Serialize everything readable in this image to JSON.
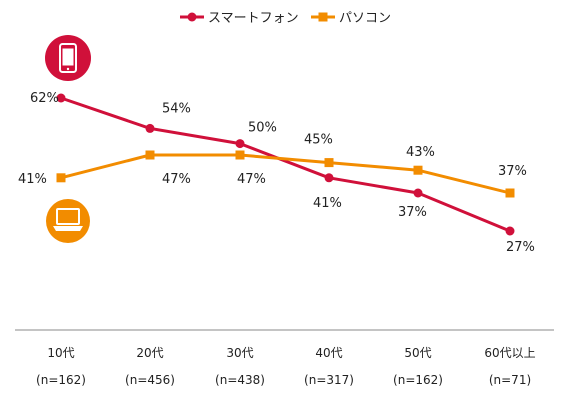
{
  "colors": {
    "smartphone": "#d0103a",
    "pc": "#f28c00",
    "axis": "#888888",
    "icon_white": "#ffffff"
  },
  "icons": {
    "smartphone_badge": "smartphone-icon",
    "pc_badge": "laptop-icon"
  },
  "chart_data": {
    "type": "line",
    "categories": [
      "10代",
      "20代",
      "30代",
      "40代",
      "50代",
      "60代以上"
    ],
    "sample_sizes": [
      "(n=162)",
      "(n=456)",
      "(n=438)",
      "(n=317)",
      "(n=162)",
      "(n=71)"
    ],
    "series": [
      {
        "name": "スマートフォン",
        "values": [
          62,
          54,
          50,
          41,
          37,
          27
        ],
        "labels": [
          "62%",
          "54%",
          "50%",
          "41%",
          "37%",
          "27%"
        ],
        "color": "#d0103a",
        "marker": "circle"
      },
      {
        "name": "パソコン",
        "values": [
          41,
          47,
          47,
          45,
          43,
          37
        ],
        "labels": [
          "41%",
          "47%",
          "47%",
          "45%",
          "43%",
          "37%"
        ],
        "color": "#f28c00",
        "marker": "square"
      }
    ],
    "ylim": [
      0,
      100
    ],
    "legend_position": "top-center",
    "grid": false
  }
}
